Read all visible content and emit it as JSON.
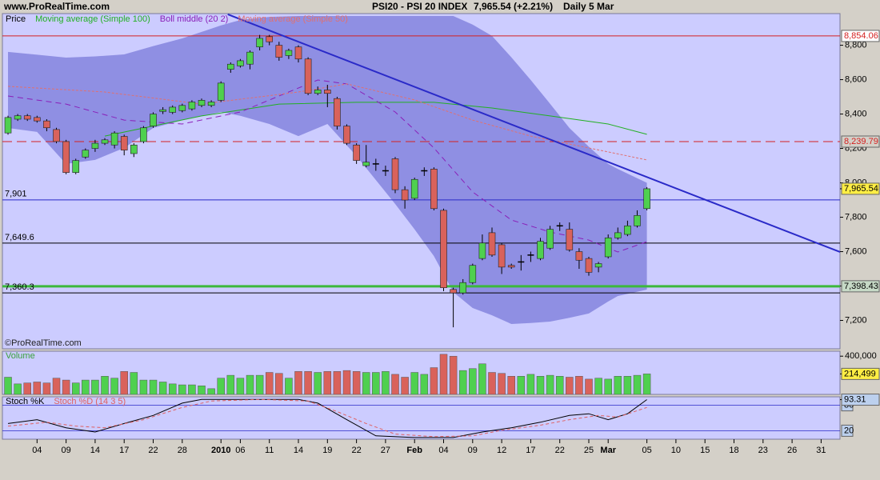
{
  "header": {
    "site": "www.ProRealTime.com",
    "instrument": "PSI20 - PSI 20 INDEX",
    "quote": "7,965.54 (+2.21%)",
    "period": "Daily  5 Mar"
  },
  "chart_data": [
    {
      "type": "candlestick",
      "price_label": "Price",
      "credit": "©ProRealTime.com",
      "xlim": [
        -0.58,
        85.95
      ],
      "ylim": [
        7035,
        8984
      ],
      "yticks": [
        {
          "value": 8800,
          "label": "8,800"
        },
        {
          "value": 8600,
          "label": "8,600"
        },
        {
          "value": 8400,
          "label": "8,400"
        },
        {
          "value": 8200,
          "label": "8,200"
        },
        {
          "value": 8000,
          "label": "8,000"
        },
        {
          "value": 7800,
          "label": "7,800"
        },
        {
          "value": 7600,
          "label": "7,600"
        },
        {
          "value": 7400,
          "label": "7,400"
        },
        {
          "value": 7200,
          "label": "7,200"
        }
      ],
      "up_color": "#4fd04f",
      "down_color": "#d9625b",
      "flat_color": "#000000",
      "open": [
        8290,
        8370,
        8390,
        8380,
        8360,
        8310,
        8240,
        8060,
        8150,
        8200,
        8230,
        8220,
        8270,
        8170,
        8240,
        8330,
        8415,
        8410,
        8420,
        8430,
        8450,
        8450,
        8480,
        8660,
        8680,
        8690,
        8790,
        8850,
        8800,
        8740,
        8790,
        8720,
        8520,
        8540,
        8490,
        8330,
        8220,
        8100,
        8110,
        8070,
        8140,
        7960,
        7910,
        8070,
        8080,
        7840,
        7380,
        7360,
        7420,
        7560,
        7710,
        7640,
        7520,
        7540,
        7580,
        7560,
        7620,
        7750,
        7730,
        7600,
        7560,
        7510,
        7570,
        7680,
        7700,
        7750,
        7850
      ],
      "high": [
        8390,
        8400,
        8400,
        8390,
        8370,
        8320,
        8250,
        8140,
        8200,
        8250,
        8260,
        8300,
        8280,
        8230,
        8330,
        8410,
        8440,
        8450,
        8460,
        8480,
        8490,
        8480,
        8590,
        8700,
        8720,
        8770,
        8860,
        8860,
        8820,
        8780,
        8800,
        8730,
        8560,
        8570,
        8500,
        8340,
        8230,
        8220,
        8140,
        8100,
        8150,
        7980,
        8030,
        8090,
        8090,
        7850,
        7390,
        7440,
        7530,
        7700,
        7740,
        7650,
        7530,
        7580,
        7600,
        7680,
        7750,
        7770,
        7770,
        7620,
        7570,
        7540,
        7700,
        7740,
        7780,
        7840,
        7975
      ],
      "low": [
        8280,
        8360,
        8360,
        8350,
        8300,
        8230,
        8050,
        8050,
        8140,
        8180,
        8220,
        8200,
        8160,
        8150,
        8230,
        8320,
        8400,
        8400,
        8410,
        8420,
        8440,
        8440,
        8470,
        8640,
        8670,
        8660,
        8770,
        8800,
        8710,
        8720,
        8700,
        8510,
        8510,
        8440,
        8310,
        8220,
        8110,
        8090,
        8070,
        8040,
        7940,
        7850,
        7900,
        8040,
        7840,
        7370,
        7160,
        7350,
        7410,
        7550,
        7570,
        7470,
        7500,
        7490,
        7540,
        7550,
        7610,
        7720,
        7600,
        7500,
        7460,
        7480,
        7560,
        7670,
        7690,
        7740,
        7840
      ],
      "close": [
        8380,
        8390,
        8370,
        8360,
        8320,
        8240,
        8060,
        8130,
        8190,
        8230,
        8250,
        8290,
        8190,
        8220,
        8320,
        8400,
        8425,
        8440,
        8450,
        8470,
        8480,
        8470,
        8580,
        8690,
        8710,
        8760,
        8840,
        8820,
        8730,
        8770,
        8720,
        8520,
        8540,
        8520,
        8330,
        8230,
        8130,
        8120,
        8110,
        8070,
        7960,
        7900,
        8020,
        8070,
        7850,
        7390,
        7360,
        7420,
        7520,
        7650,
        7580,
        7510,
        7510,
        7540,
        7580,
        7660,
        7730,
        7750,
        7610,
        7550,
        7480,
        7530,
        7680,
        7710,
        7750,
        7810,
        7965.54
      ],
      "last_label": {
        "value": 7965.54,
        "label": "7,965.54"
      },
      "band": {
        "color": "#8f8fe3",
        "x": [
          0,
          3,
          6,
          9,
          12,
          15,
          18,
          22,
          24,
          27,
          30,
          33,
          36,
          40,
          42,
          44,
          46,
          48,
          50,
          52,
          54,
          56,
          58,
          60,
          62,
          63,
          66
        ],
        "upper": [
          8761,
          8745,
          8728,
          8735,
          8747,
          8795,
          8840,
          8915,
          8947,
          8965,
          8970,
          8970,
          8970,
          8970,
          8970,
          8970,
          8970,
          8920,
          8854,
          8730,
          8598,
          8460,
          8319,
          8210,
          8110,
          8080,
          8000
        ],
        "lower": [
          8319,
          8296,
          8110,
          8133,
          8203,
          8319,
          8365,
          8412,
          8390,
          8342,
          8272,
          8342,
          8156,
          7877,
          7730,
          7574,
          7365,
          7272,
          7230,
          7179,
          7185,
          7193,
          7215,
          7240,
          7310,
          7342,
          7379
        ]
      },
      "overlays": [
        {
          "name": "Moving average (Simple 100)",
          "color": "#22b022",
          "dash": null,
          "x": [
            10,
            20,
            28,
            36,
            44,
            50,
            56,
            62,
            66
          ],
          "values": [
            8272,
            8389,
            8458,
            8468,
            8468,
            8435,
            8389,
            8342,
            8282
          ]
        },
        {
          "name": "Boll middle (20 2)",
          "color": "#8a1fb8",
          "dash": "7 5",
          "x": [
            0,
            6,
            12,
            18,
            24,
            28,
            32,
            35,
            40,
            44,
            48,
            52,
            56,
            60,
            63,
            66
          ],
          "values": [
            8505,
            8458,
            8365,
            8342,
            8412,
            8505,
            8598,
            8575,
            8412,
            8203,
            7947,
            7784,
            7714,
            7667,
            7598,
            7658
          ]
        },
        {
          "name": "Moving average (Simple 50)",
          "color": "#e07070",
          "dash": "3 2",
          "x": [
            0,
            10,
            20,
            30,
            35,
            42,
            48,
            54,
            60,
            66
          ],
          "values": [
            8561,
            8528,
            8458,
            8528,
            8575,
            8482,
            8365,
            8272,
            8203,
            8133
          ]
        }
      ],
      "trendline": {
        "color": "#2a2ac8",
        "x": [
          22.7,
          85.95
        ],
        "values": [
          8980,
          7598
        ]
      },
      "levels": [
        {
          "value": 8854.06,
          "label": "8,854.06",
          "color": "#d42020",
          "dash": null,
          "width": 1,
          "side": "right",
          "box": "#ffffff"
        },
        {
          "value": 8239.79,
          "label": "8,239.79",
          "color": "#d42020",
          "dash": "12 6",
          "width": 1,
          "side": "right",
          "box": "#d4d0c8"
        },
        {
          "value": 7901,
          "label": "7,901",
          "color": "#2a2ac8",
          "dash": null,
          "width": 1,
          "side": "left"
        },
        {
          "value": 7649.6,
          "label": "7,649.6",
          "color": "#000000",
          "dash": null,
          "width": 1,
          "side": "left"
        },
        {
          "value": 7398.43,
          "label": "7,398.43",
          "color": "#3cb83c",
          "dash": null,
          "width": 3,
          "side": "right",
          "box": "#c6d9c6"
        },
        {
          "value": 7360.3,
          "label": "7,360.3",
          "color": "#000000",
          "dash": null,
          "width": 1,
          "side": "left"
        }
      ]
    },
    {
      "type": "bar",
      "title": "Volume",
      "title_color": "#3aa03a",
      "xlim": [
        -0.58,
        85.95
      ],
      "ylim": [
        0,
        452000
      ],
      "yticks": [
        {
          "value": 400000,
          "label": "400,000"
        }
      ],
      "up_color": "#4fd04f",
      "down_color": "#d9625b",
      "values": [
        180000,
        110000,
        120000,
        130000,
        120000,
        170000,
        150000,
        120000,
        150000,
        150000,
        190000,
        170000,
        240000,
        230000,
        150000,
        150000,
        130000,
        110000,
        100000,
        100000,
        90000,
        60000,
        170000,
        200000,
        170000,
        200000,
        200000,
        230000,
        220000,
        170000,
        240000,
        240000,
        230000,
        240000,
        240000,
        250000,
        240000,
        230000,
        230000,
        240000,
        210000,
        180000,
        230000,
        210000,
        280000,
        420000,
        400000,
        250000,
        270000,
        320000,
        230000,
        220000,
        190000,
        190000,
        210000,
        190000,
        200000,
        190000,
        180000,
        190000,
        160000,
        170000,
        160000,
        190000,
        190000,
        200000,
        214499
      ],
      "last_label": {
        "value": 214499,
        "label": "214,499"
      }
    },
    {
      "type": "line",
      "xlim": [
        -0.58,
        85.95
      ],
      "ylim": [
        0,
        100
      ],
      "yticks": [
        20,
        80
      ],
      "xticks": [
        {
          "value": 3,
          "label": "04"
        },
        {
          "value": 6,
          "label": "09"
        },
        {
          "value": 9,
          "label": "14"
        },
        {
          "value": 12,
          "label": "17"
        },
        {
          "value": 15,
          "label": "22"
        },
        {
          "value": 18,
          "label": "28"
        },
        {
          "value": 22,
          "label": "2010"
        },
        {
          "value": 24,
          "label": "06"
        },
        {
          "value": 27,
          "label": "11"
        },
        {
          "value": 30,
          "label": "14"
        },
        {
          "value": 33,
          "label": "19"
        },
        {
          "value": 36,
          "label": "22"
        },
        {
          "value": 39,
          "label": "27"
        },
        {
          "value": 42,
          "label": "Feb"
        },
        {
          "value": 45,
          "label": "04"
        },
        {
          "value": 48,
          "label": "09"
        },
        {
          "value": 51,
          "label": "12"
        },
        {
          "value": 54,
          "label": "17"
        },
        {
          "value": 57,
          "label": "22"
        },
        {
          "value": 60,
          "label": "25"
        },
        {
          "value": 62,
          "label": "Mar"
        },
        {
          "value": 66,
          "label": "05"
        },
        {
          "value": 69,
          "label": "10"
        },
        {
          "value": 72,
          "label": "15"
        },
        {
          "value": 75,
          "label": "18"
        },
        {
          "value": 78,
          "label": "23"
        },
        {
          "value": 81,
          "label": "26"
        },
        {
          "value": 84,
          "label": "31"
        }
      ],
      "series": [
        {
          "name": "Stoch %K",
          "color": "#000000",
          "dash": null,
          "x": [
            0,
            3,
            6,
            9,
            12,
            15,
            18,
            20,
            24,
            28,
            30,
            32,
            35,
            38,
            42,
            46,
            49,
            52,
            55,
            58,
            60,
            62,
            64,
            66
          ],
          "values": [
            37,
            46,
            27,
            17,
            37,
            56,
            85,
            94,
            94,
            94,
            94,
            85,
            46,
            8,
            4,
            4,
            17,
            27,
            40,
            56,
            60,
            46,
            60,
            93.31
          ]
        },
        {
          "name": "Stoch %D (14 3 5)",
          "color": "#e06060",
          "dash": "4 3",
          "x": [
            0,
            4,
            7,
            10,
            14,
            18,
            21,
            26,
            31,
            34,
            37,
            40,
            44,
            48,
            51,
            55,
            58,
            61,
            63,
            66
          ],
          "values": [
            31,
            40,
            31,
            27,
            46,
            75,
            90,
            94,
            90,
            65,
            37,
            12,
            6,
            8,
            21,
            33,
            46,
            56,
            52,
            75
          ]
        }
      ],
      "last_label": {
        "value": 93.31,
        "label": "93.31"
      }
    }
  ]
}
